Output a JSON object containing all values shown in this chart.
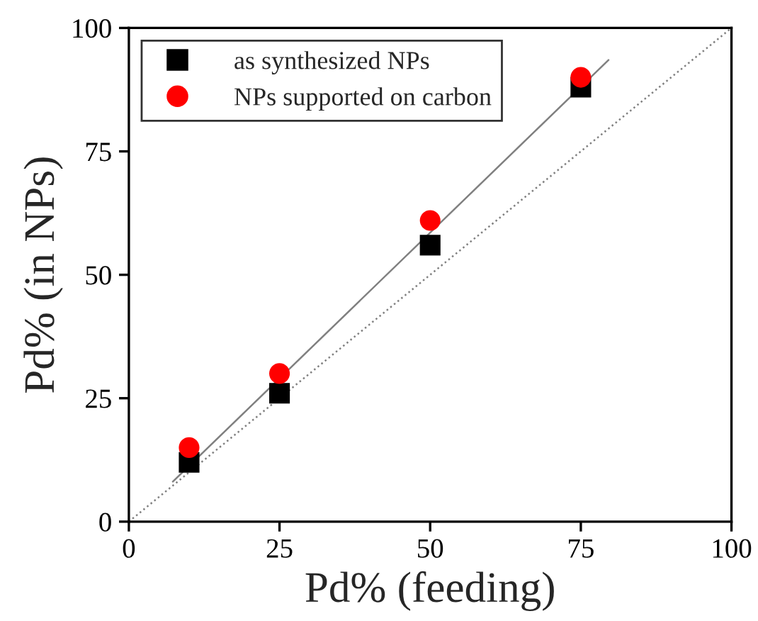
{
  "chart_data": {
    "type": "scatter",
    "xlabel": "Pd% (feeding)",
    "ylabel": "Pd% (in NPs)",
    "x": [
      10,
      25,
      50,
      75
    ],
    "series": [
      {
        "name": "as synthesized NPs",
        "color": "#000000",
        "marker": "square",
        "values": [
          12,
          26,
          56,
          88
        ]
      },
      {
        "name": "NPs supported on carbon",
        "color": "#ff0000",
        "marker": "circle",
        "values": [
          15,
          30,
          61,
          90
        ]
      },
      {
        "type": "line",
        "color": "#808080",
        "line_style": "solid",
        "marker": "none",
        "x": [
          7.3,
          79.6
        ],
        "values": [
          8.1,
          93.5
        ]
      },
      {
        "type": "line",
        "color": "#808080",
        "line_style": "dotted",
        "marker": "none",
        "x": [
          0,
          100
        ],
        "values": [
          0,
          100
        ]
      }
    ],
    "xlim": [
      0,
      100
    ],
    "ylim": [
      0,
      100
    ],
    "xticks": [
      0,
      25,
      50,
      75,
      100
    ],
    "yticks": [
      0,
      25,
      50,
      75,
      100
    ],
    "grid": false,
    "legend": "top left"
  }
}
